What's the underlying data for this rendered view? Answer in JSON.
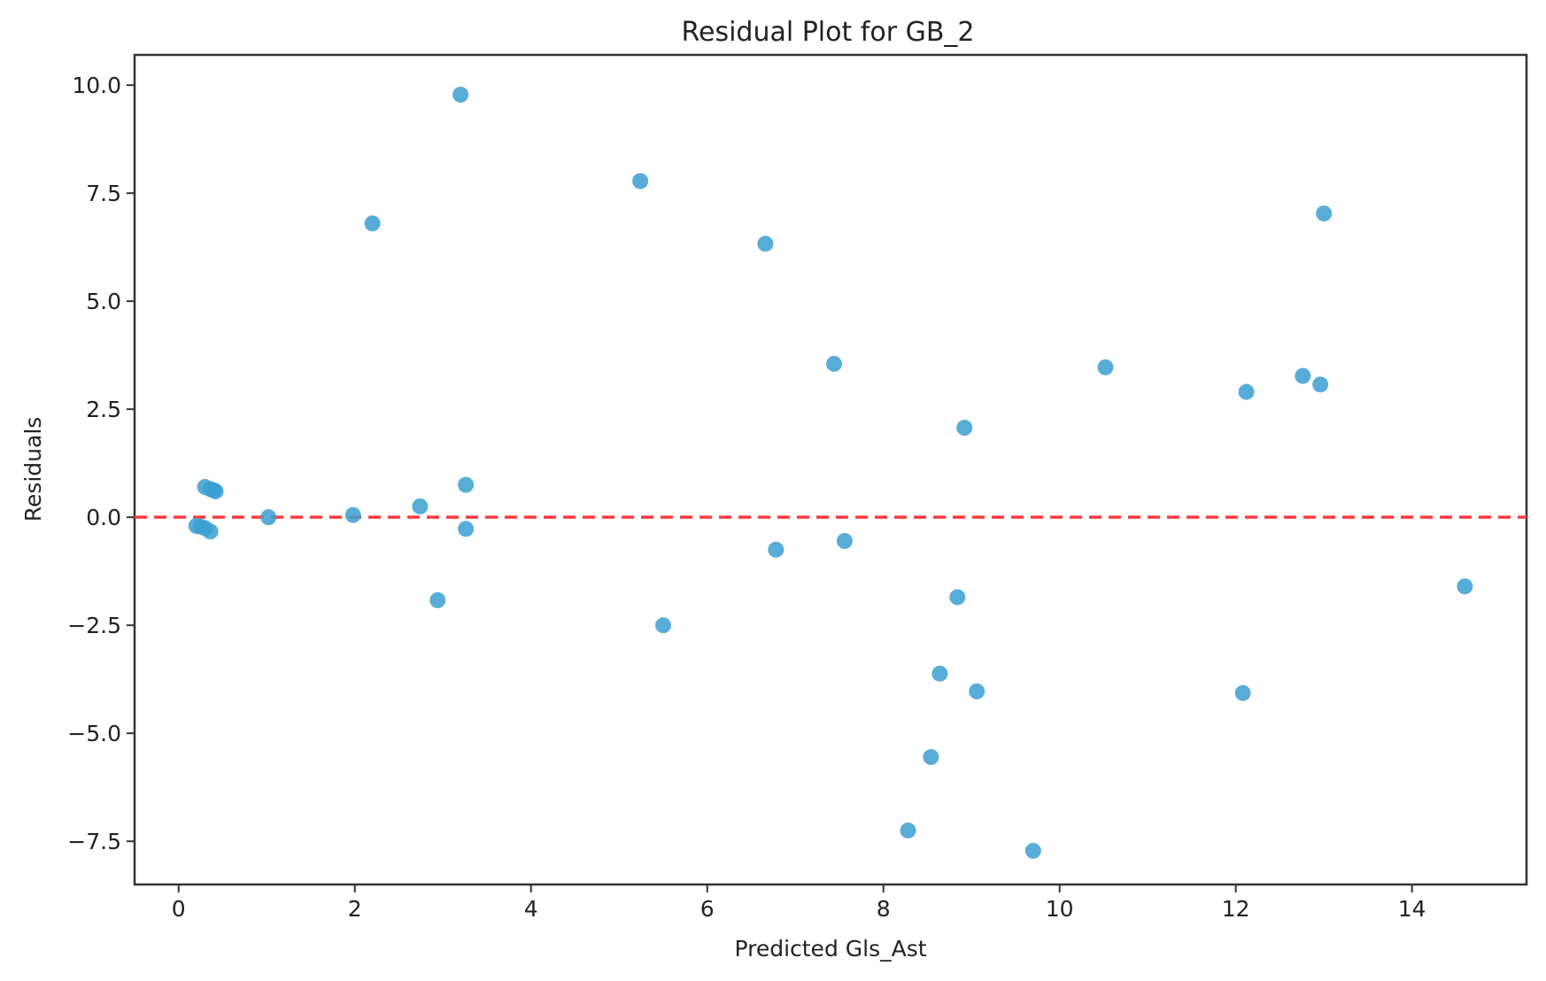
{
  "chart_data": {
    "type": "scatter",
    "title": "Residual Plot for GB_2",
    "xlabel": "Predicted Gls_Ast",
    "ylabel": "Residuals",
    "xlim": [
      -0.5,
      15.3
    ],
    "ylim": [
      -8.5,
      10.7
    ],
    "xticks": [
      0,
      2,
      4,
      6,
      8,
      10,
      12,
      14
    ],
    "xtick_labels": [
      "0",
      "2",
      "4",
      "6",
      "8",
      "10",
      "12",
      "14"
    ],
    "yticks": [
      -7.5,
      -5.0,
      -2.5,
      0.0,
      2.5,
      5.0,
      7.5,
      10.0
    ],
    "ytick_labels": [
      "−7.5",
      "−5.0",
      "−2.5",
      "0.0",
      "2.5",
      "5.0",
      "7.5",
      "10.0"
    ],
    "grid": false,
    "reference_line": {
      "y": 0,
      "style": "dashed",
      "color": "#ff3b3b"
    },
    "marker_color": "#3a9fd1",
    "series": [
      {
        "x": [
          0.2,
          0.25,
          0.3,
          0.36,
          0.4,
          0.42,
          0.36,
          0.3,
          1.02,
          1.98,
          2.2,
          2.74,
          2.94,
          3.2,
          3.26,
          3.26,
          5.24,
          5.5,
          6.66,
          6.78,
          7.44,
          7.56,
          8.28,
          8.54,
          8.64,
          8.84,
          8.92,
          9.06,
          9.7,
          10.52,
          12.08,
          12.12,
          12.76,
          12.96,
          13.0,
          14.6
        ],
        "y": [
          -0.2,
          -0.22,
          0.7,
          0.65,
          0.62,
          0.6,
          -0.33,
          -0.25,
          0.0,
          0.05,
          6.8,
          0.25,
          -1.92,
          9.78,
          0.75,
          -0.27,
          7.78,
          -2.5,
          6.33,
          -0.75,
          3.55,
          -0.55,
          -7.25,
          -5.55,
          -3.62,
          -1.85,
          2.07,
          -4.03,
          -7.72,
          3.47,
          -4.07,
          2.9,
          3.27,
          3.07,
          7.03,
          -1.6
        ]
      }
    ]
  }
}
